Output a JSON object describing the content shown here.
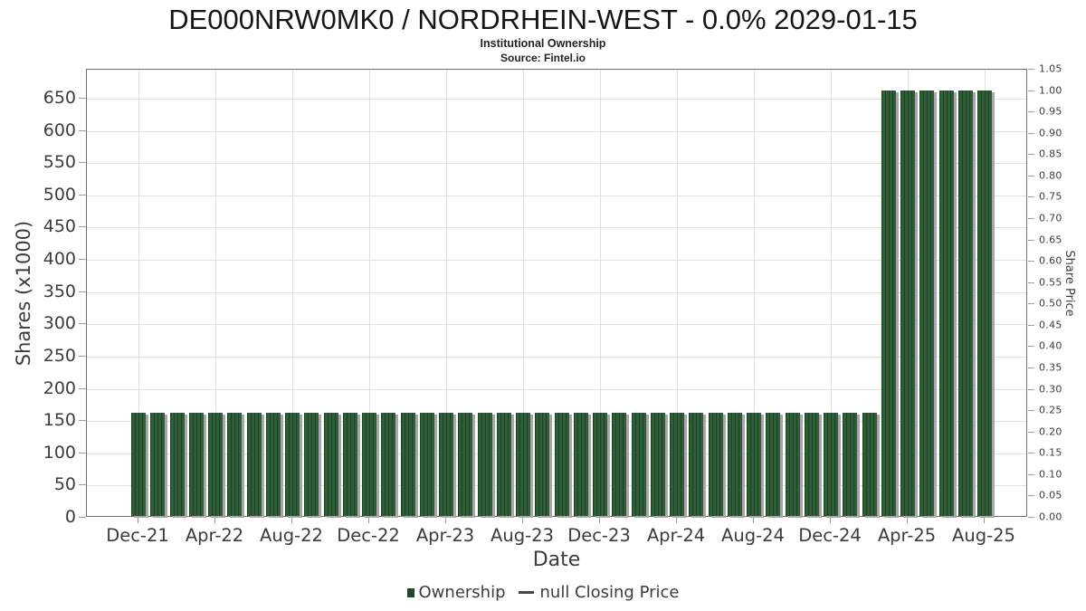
{
  "header": {
    "title": "DE000NRW0MK0 / NORDRHEIN-WEST - 0.0% 2029-01-15",
    "subtitle": "Institutional Ownership",
    "source": "Source: Fintel.io"
  },
  "legend": {
    "items": [
      {
        "marker": "square",
        "label": "Ownership"
      },
      {
        "marker": "line",
        "label": "null Closing Price"
      }
    ]
  },
  "colors": {
    "bar_fill": "#2e5d38",
    "bar_stripe": "#1b4024",
    "bar_shadow": "#a8a8a8",
    "legend_marker": "#1f4727",
    "grid": "#e0e0e0",
    "frame": "#6f6f6f",
    "tick_mark": "#9a9a9a",
    "text": "#3c3c3c",
    "title_text": "#161616"
  },
  "chart_data": {
    "type": "bar",
    "title": "DE000NRW0MK0 / NORDRHEIN-WEST - 0.0% 2029-01-15",
    "subtitle": "Institutional Ownership",
    "source": "Source: Fintel.io",
    "xlabel": "Date",
    "categories": [
      "Dec-21",
      "Jan-22",
      "Feb-22",
      "Mar-22",
      "Apr-22",
      "May-22",
      "Jun-22",
      "Jul-22",
      "Aug-22",
      "Sep-22",
      "Oct-22",
      "Nov-22",
      "Dec-22",
      "Jan-23",
      "Feb-23",
      "Mar-23",
      "Apr-23",
      "May-23",
      "Jun-23",
      "Jul-23",
      "Aug-23",
      "Sep-23",
      "Oct-23",
      "Nov-23",
      "Dec-23",
      "Jan-24",
      "Feb-24",
      "Mar-24",
      "Apr-24",
      "May-24",
      "Jun-24",
      "Jul-24",
      "Aug-24",
      "Sep-24",
      "Oct-24",
      "Nov-24",
      "Dec-24",
      "Jan-25",
      "Feb-25",
      "Mar-25",
      "Apr-25",
      "May-25",
      "Jun-25",
      "Jul-25",
      "Aug-25"
    ],
    "values": [
      160,
      160,
      160,
      160,
      160,
      160,
      160,
      160,
      160,
      160,
      160,
      160,
      160,
      160,
      160,
      160,
      160,
      160,
      160,
      160,
      160,
      160,
      160,
      160,
      160,
      160,
      160,
      160,
      160,
      160,
      160,
      160,
      160,
      160,
      160,
      160,
      160,
      160,
      160,
      660,
      660,
      660,
      660,
      660,
      660
    ],
    "series_name": "Ownership (Shares x1000)",
    "x_tick_labels": [
      "Dec-21",
      "Apr-22",
      "Aug-22",
      "Dec-22",
      "Apr-23",
      "Aug-23",
      "Dec-23",
      "Apr-24",
      "Aug-24",
      "Dec-24",
      "Apr-25",
      "Aug-25"
    ],
    "y_left": {
      "label": "Shares (x1000)",
      "ticks": [
        0,
        50,
        100,
        150,
        200,
        250,
        300,
        350,
        400,
        450,
        500,
        550,
        600,
        650
      ],
      "axis_top_value": 695,
      "ylim": [
        0,
        695
      ]
    },
    "y_right": {
      "label": "Share Price",
      "ticks": [
        0.0,
        0.05,
        0.1,
        0.15,
        0.2,
        0.25,
        0.3,
        0.35,
        0.4,
        0.45,
        0.5,
        0.55,
        0.6,
        0.65,
        0.7,
        0.75,
        0.8,
        0.85,
        0.9,
        0.95,
        1.0,
        1.05
      ],
      "ylim": [
        0,
        1.05
      ]
    },
    "grid": true,
    "legend_position": "bottom",
    "price_series": {
      "name": "null Closing Price",
      "points": []
    }
  }
}
